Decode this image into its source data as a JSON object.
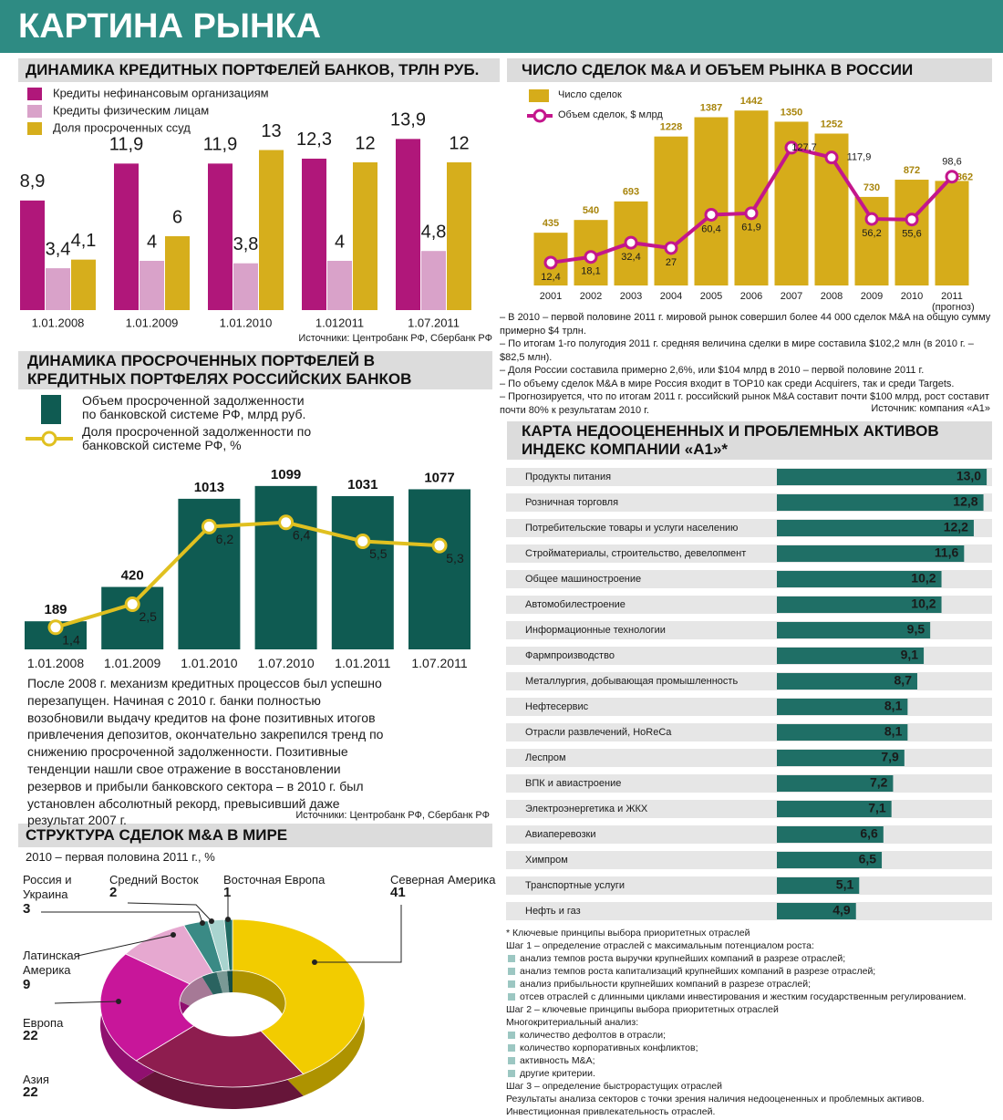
{
  "title": "КАРТИНА РЫНКА",
  "chart_data": [
    {
      "type": "bar",
      "title": "ДИНАМИКА КРЕДИТНЫХ ПОРТФЕЛЕЙ БАНКОВ, ТРЛН РУБ.",
      "categories": [
        "1.01.2008",
        "1.01.2009",
        "1.01.2010",
        "1.012011",
        "1.07.2011"
      ],
      "series": [
        {
          "name": "Кредиты нефинансовым организациям",
          "color": "#b0177a",
          "values": [
            8.9,
            11.9,
            11.9,
            12.3,
            13.9
          ],
          "value_labels": [
            "8,9",
            "11,9",
            "11,9",
            "12,3",
            "13,9"
          ]
        },
        {
          "name": "Кредиты физическим лицам",
          "color": "#d9a2c9",
          "values": [
            3.4,
            4,
            3.8,
            4,
            4.8
          ],
          "value_labels": [
            "3,4",
            "4",
            "3,8",
            "4",
            "4,8"
          ]
        },
        {
          "name": "Доля просроченных ссуд",
          "color": "#d6ae1c",
          "values": [
            4.1,
            6,
            13,
            12,
            12
          ],
          "value_labels": [
            "4,1",
            "6",
            "13",
            "12",
            "12"
          ]
        }
      ],
      "source": "Источники: Центробанк РФ, Сбербанк РФ"
    },
    {
      "type": "combo",
      "title": "ЧИСЛО СДЕЛОК M&A И ОБЪЕМ РЫНКА В РОССИИ",
      "categories": [
        "2001",
        "2002",
        "2003",
        "2004",
        "2005",
        "2006",
        "2007",
        "2008",
        "2009",
        "2010",
        "2011 (прогноз)"
      ],
      "series": [
        {
          "name": "Число сделок",
          "type": "bar",
          "color": "#d6ac1a",
          "values": [
            435,
            540,
            693,
            1228,
            1387,
            1442,
            1350,
            1252,
            730,
            872,
            862
          ]
        },
        {
          "name": "Объем сделок, $ млрд",
          "type": "line",
          "color": "#c4168c",
          "values": [
            12.4,
            18.1,
            32.4,
            27,
            60.4,
            61.9,
            127.7,
            117.9,
            56.2,
            55.6,
            98.6
          ],
          "value_labels": [
            "12,4",
            "18,1",
            "32,4",
            "27",
            "60,4",
            "61,9",
            "127,7",
            "117,9",
            "56,2",
            "55,6",
            "98,6"
          ]
        }
      ],
      "notes": [
        "– В 2010 – первой половине 2011 г. мировой рынок совершил более 44 000 сделок M&A на общую сумму примерно $4 трлн.",
        "– По итогам 1-го полугодия 2011 г. средняя величина сделки в мире составила $102,2 млн (в 2010 г. – $82,5 млн).",
        "– Доля России составила примерно 2,6%, или $104 млрд в 2010 – первой половине 2011 г.",
        "– По объему сделок M&A в мире Россия входит в TOP10 как среди Acquirers, так и среди Targets.",
        "– Прогнозируется, что по итогам 2011 г. российский рынок M&A составит почти $100 млрд, рост составит почти 80% к результатам 2010 г."
      ],
      "source": "Источник: компания «А1»"
    },
    {
      "type": "combo",
      "title": "ДИНАМИКА ПРОСРОЧЕННЫХ ПОРТФЕЛЕЙ В КРЕДИТНЫХ ПОРТФЕЛЯХ РОССИЙСКИХ БАНКОВ",
      "categories": [
        "1.01.2008",
        "1.01.2009",
        "1.01.2010",
        "1.07.2010",
        "1.01.2011",
        "1.07.2011"
      ],
      "series": [
        {
          "name": "Объем просроченной задолженности по банковской системе РФ, млрд руб.",
          "type": "bar",
          "color": "#0f5b52",
          "values": [
            189,
            420,
            1013,
            1099,
            1031,
            1077
          ]
        },
        {
          "name": "Доля просроченной задолженности по банковской системе РФ, %",
          "type": "line",
          "color": "#e0c020",
          "values": [
            1.4,
            2.5,
            6.2,
            6.4,
            5.5,
            5.3
          ],
          "value_labels": [
            "1,4",
            "2,5",
            "6,2",
            "6,4",
            "5,5",
            "5,3"
          ]
        }
      ],
      "description": "После 2008 г. механизм кредитных процессов был успешно перезапущен. Начиная с 2010 г. банки полностью возобновили выдачу кредитов на фоне позитивных итогов привлечения депозитов, окончательно закрепился тренд по снижению просроченной задолженности. Позитивные тенденции нашли свое отражение в восстановлении резервов и прибыли банковского сектора – в 2010 г. был установлен абсолютный рекорд, превысивший даже результат 2007 г.",
      "source": "Источники: Центробанк РФ, Сбербанк РФ"
    },
    {
      "type": "barh",
      "title": "КАРТА НЕДООЦЕНЕННЫХ И ПРОБЛЕМНЫХ АКТИВОВ",
      "subtitle": "ИНДЕКС КОМПАНИИ «А1»*",
      "color": "#1f6f66",
      "categories": [
        "Продукты питания",
        "Розничная торговля",
        "Потребительские товары и услуги населению",
        "Стройматериалы, строительство, девелопмент",
        "Общее машиностроение",
        "Автомобилестроение",
        "Информационные технологии",
        "Фармпроизводство",
        "Металлургия, добывающая промышленность",
        "Нефтесервис",
        "Отрасли развлечений, HoReCa",
        "Леспром",
        "ВПК и авиастроение",
        "Электроэнергетика и ЖКХ",
        "Авиаперевозки",
        "Химпром",
        "Транспортные услуги",
        "Нефть и газ"
      ],
      "values": [
        13.0,
        12.8,
        12.2,
        11.6,
        10.2,
        10.2,
        9.5,
        9.1,
        8.7,
        8.1,
        8.1,
        7.9,
        7.2,
        7.1,
        6.6,
        6.5,
        5.1,
        4.9
      ],
      "value_labels": [
        "13,0",
        "12,8",
        "12,2",
        "11,6",
        "10,2",
        "10,2",
        "9,5",
        "9,1",
        "8,7",
        "8,1",
        "8,1",
        "7,9",
        "7,2",
        "7,1",
        "6,6",
        "6,5",
        "5,1",
        "4,9"
      ],
      "footnotes": [
        {
          "text": "* Ключевые принципы выбора приоритетных отраслей"
        },
        {
          "text": "Шаг 1 – определение отраслей с максимальным потенциалом роста:"
        },
        {
          "text": "анализ темпов роста выручки крупнейших компаний в разрезе отраслей;",
          "bullet": true
        },
        {
          "text": "анализ темпов роста капитализаций крупнейших компаний в разрезе отраслей;",
          "bullet": true
        },
        {
          "text": "анализ прибыльности крупнейших компаний в разрезе отраслей;",
          "bullet": true
        },
        {
          "text": "отсев отраслей с длинными циклами инвестирования и жестким государственным регулированием.",
          "bullet": true
        },
        {
          "text": "Шаг 2 – ключевые принципы выбора приоритетных отраслей"
        },
        {
          "text": "Многокритериальный анализ:"
        },
        {
          "text": "количество дефолтов в отрасли;",
          "bullet": true
        },
        {
          "text": "количество корпоративных конфликтов;",
          "bullet": true
        },
        {
          "text": "активность M&A;",
          "bullet": true
        },
        {
          "text": "другие критерии.",
          "bullet": true
        },
        {
          "text": "Шаг 3 – определение быстрорастущих отраслей"
        },
        {
          "text": "Результаты анализа секторов с точки зрения наличия недооцененных и проблемных активов."
        },
        {
          "text": "Инвестиционная привлекательность отраслей."
        }
      ]
    },
    {
      "type": "pie",
      "title": "СТРУКТУРА СДЕЛОК M&A В МИРЕ",
      "subtitle": "2010 – первая половина 2011 г., %",
      "categories": [
        "Северная Америка",
        "Азия",
        "Европа",
        "Латинская Америка",
        "Россия и Украина",
        "Средний Восток",
        "Восточная Европа"
      ],
      "values": [
        41,
        22,
        22,
        9,
        3,
        2,
        1
      ],
      "colors": [
        "#f2cc00",
        "#8e1d4f",
        "#c8169a",
        "#e6a8d0",
        "#3a8a85",
        "#a9d4cf",
        "#1f6b63"
      ]
    }
  ]
}
